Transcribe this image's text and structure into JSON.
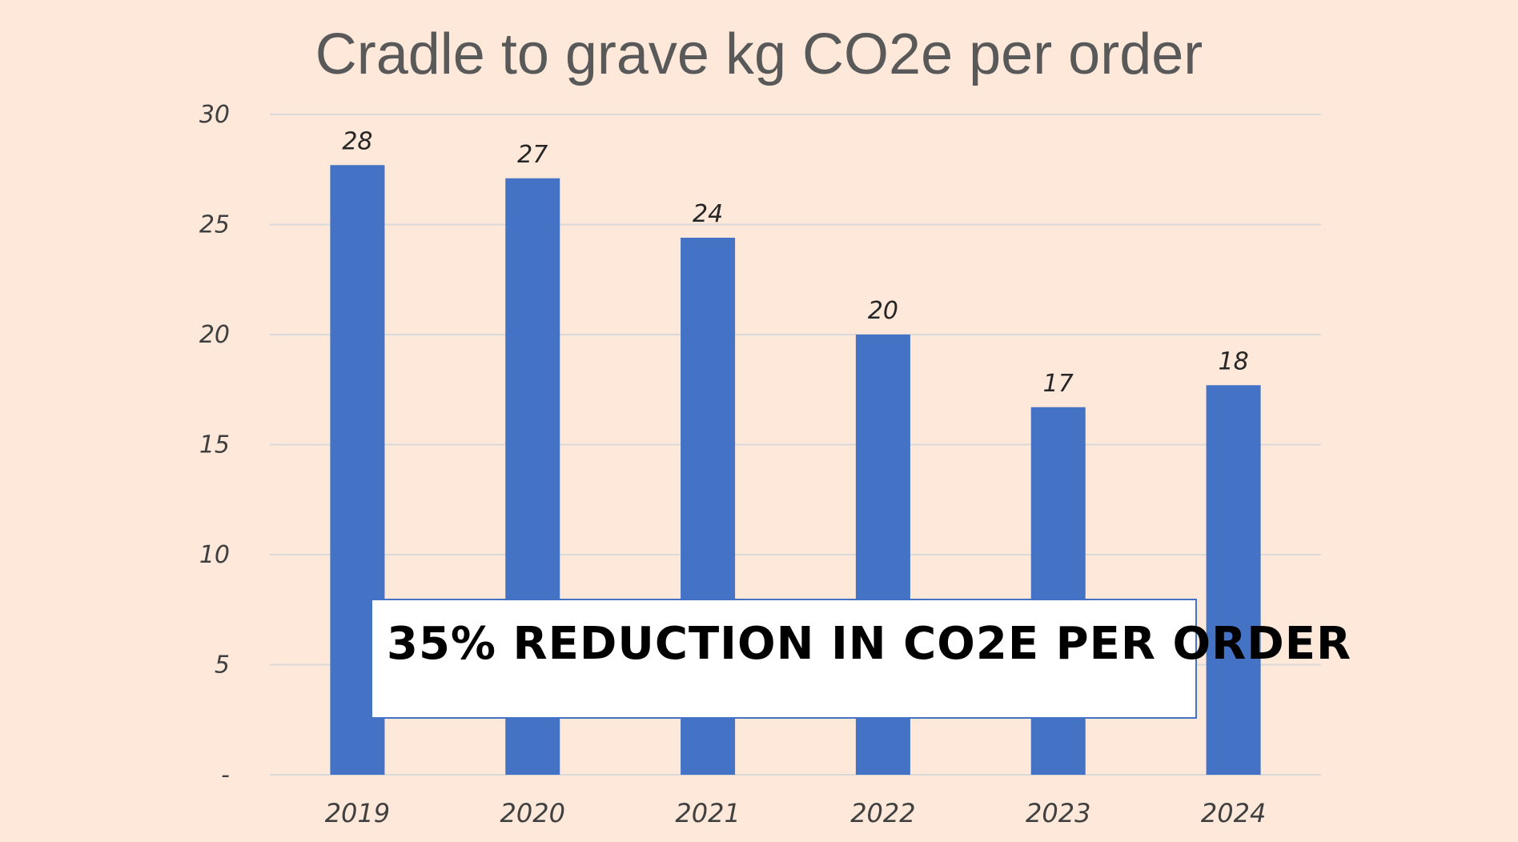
{
  "chart_data": {
    "type": "bar",
    "title": "Cradle to grave kg CO2e per order",
    "categories": [
      "2019",
      "2020",
      "2021",
      "2022",
      "2023",
      "2024"
    ],
    "values": [
      27.7,
      27.1,
      24.4,
      20.0,
      16.7,
      17.7
    ],
    "data_labels": [
      "28",
      "27",
      "24",
      "20",
      "17",
      "18"
    ],
    "ylim": [
      0,
      30
    ],
    "yticks": [
      0,
      5,
      10,
      15,
      20,
      25,
      30
    ],
    "ytick_labels": [
      "-",
      "5",
      "10",
      "15",
      "20",
      "25",
      "30"
    ],
    "grid": true,
    "legend": "none",
    "bar_color": "#4472c4",
    "grid_color": "#d9d9d9",
    "annotation": "35% REDUCTION IN CO2E PER ORDER"
  }
}
